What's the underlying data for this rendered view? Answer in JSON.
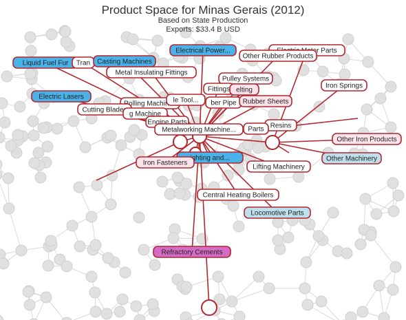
{
  "header": {
    "title": "Product Space for Minas Gerais (2012)",
    "subtitle": "Based on State Production",
    "exports": "Exports: $33.4 B USD"
  },
  "colors": {
    "edge_highlight": "#b3262e",
    "node_background": "#e0e0e0",
    "label_white": "#ffffff",
    "label_blue": "#4ab2e8",
    "label_light_blue": "#bde0ec",
    "label_pink": "#d46bc4",
    "label_light_pink": "#fde3ea"
  },
  "nodes": [
    {
      "id": "electrical-power",
      "label": "Electrical Power...",
      "fill": "label_blue"
    },
    {
      "id": "electric-motor-parts",
      "label": "Electric Motor Parts",
      "fill": "label_white"
    },
    {
      "id": "other-rubber-products",
      "label": "Other Rubber Products",
      "fill": "label_white"
    },
    {
      "id": "liquid-fuel-furnaces",
      "label": "Liquid Fuel Fur",
      "fill": "label_blue"
    },
    {
      "id": "tran",
      "label": "Tran",
      "fill": "label_white"
    },
    {
      "id": "casting-machines",
      "label": "Casting Machines",
      "fill": "label_blue"
    },
    {
      "id": "metal-insulating-fittings",
      "label": "Metal Insulating Fittings",
      "fill": "label_white"
    },
    {
      "id": "pulley-systems",
      "label": "Pulley Systems",
      "fill": "label_white"
    },
    {
      "id": "iron-springs",
      "label": "Iron Springs",
      "fill": "label_white"
    },
    {
      "id": "electric-lasers",
      "label": "Electric Lasers",
      "fill": "label_blue"
    },
    {
      "id": "fittings",
      "label": "Fittings",
      "fill": "label_white"
    },
    {
      "id": "melting",
      "label": "elting",
      "fill": "label_light_pink"
    },
    {
      "id": "rolling-machines",
      "label": "Rolling Machines",
      "fill": "label_white"
    },
    {
      "id": "machine-tool",
      "label": "le Tool...",
      "fill": "label_white"
    },
    {
      "id": "rubber-pipes",
      "label": "ber Pipe",
      "fill": "label_white"
    },
    {
      "id": "rubber-sheets",
      "label": "Rubber Sheets",
      "fill": "label_light_pink"
    },
    {
      "id": "cutting-blades",
      "label": "Cutting Blades",
      "fill": "label_white"
    },
    {
      "id": "washing-machines",
      "label": "g Machine",
      "fill": "label_white"
    },
    {
      "id": "engine-parts",
      "label": "Engine Parts",
      "fill": "label_white"
    },
    {
      "id": "resins",
      "label": "Resins",
      "fill": "label_white"
    },
    {
      "id": "metalworking-machines",
      "label": "Metalworking Machine...",
      "fill": "label_white"
    },
    {
      "id": "parts",
      "label": "Parts",
      "fill": "label_white"
    },
    {
      "id": "other-iron-products",
      "label": "Other Iron Products",
      "fill": "label_light_pink"
    },
    {
      "id": "lighting",
      "label": "ighting and...",
      "fill": "label_blue"
    },
    {
      "id": "iron-fasteners",
      "label": "Iron Fasteners",
      "fill": "label_light_pink"
    },
    {
      "id": "other-machinery",
      "label": "Other Machinery",
      "fill": "label_light_blue"
    },
    {
      "id": "lifting-machinery",
      "label": "Lifting Machinery",
      "fill": "label_white"
    },
    {
      "id": "central-heating-boilers",
      "label": "Central Heating Boilers",
      "fill": "label_white"
    },
    {
      "id": "locomotive-parts",
      "label": "Locomotive Parts",
      "fill": "label_light_blue"
    },
    {
      "id": "refractory-cements",
      "label": "Refractory Cements",
      "fill": "label_pink"
    }
  ]
}
